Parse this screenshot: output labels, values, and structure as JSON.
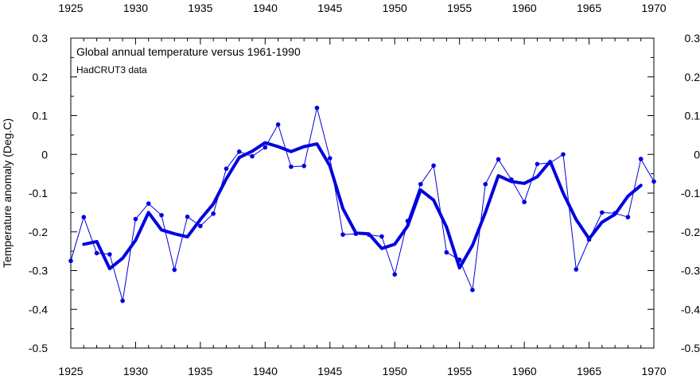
{
  "chart_data": {
    "type": "line",
    "title": "Global annual temperature versus 1961-1990",
    "subtitle": "HadCRUT3 data",
    "xlabel": "",
    "ylabel": "Temperature anomaly (Deg.C)",
    "xlim": [
      1925,
      1970
    ],
    "ylim": [
      -0.5,
      0.3
    ],
    "xticks": [
      1925,
      1930,
      1935,
      1940,
      1945,
      1950,
      1955,
      1960,
      1965,
      1970
    ],
    "yticks": [
      0.3,
      0.2,
      0.1,
      0,
      -0.1,
      -0.2,
      -0.3,
      -0.4,
      -0.5
    ],
    "ytick_labels": [
      "0.3",
      "0.2",
      "0.1",
      "0",
      "-0.1",
      "-0.2",
      "-0.3",
      "-0.4",
      "-0.5"
    ],
    "grid": false,
    "series": [
      {
        "style": "thin line with markers",
        "color": "#0000e0",
        "x": [
          1925,
          1926,
          1927,
          1928,
          1929,
          1930,
          1931,
          1932,
          1933,
          1934,
          1935,
          1936,
          1937,
          1938,
          1939,
          1940,
          1941,
          1942,
          1943,
          1944,
          1945,
          1946,
          1947,
          1948,
          1949,
          1950,
          1951,
          1952,
          1953,
          1954,
          1955,
          1956,
          1957,
          1958,
          1959,
          1960,
          1961,
          1962,
          1963,
          1964,
          1965,
          1966,
          1967,
          1968,
          1969,
          1970
        ],
        "y": [
          -0.275,
          -0.162,
          -0.255,
          -0.258,
          -0.378,
          -0.167,
          -0.127,
          -0.157,
          -0.298,
          -0.161,
          -0.185,
          -0.153,
          -0.037,
          0.007,
          -0.005,
          0.018,
          0.077,
          -0.032,
          -0.03,
          0.12,
          -0.01,
          -0.207,
          -0.205,
          -0.207,
          -0.212,
          -0.31,
          -0.172,
          -0.077,
          -0.029,
          -0.253,
          -0.272,
          -0.35,
          -0.077,
          -0.013,
          -0.065,
          -0.123,
          -0.025,
          -0.022,
          0.0,
          -0.297,
          -0.22,
          -0.15,
          -0.152,
          -0.162,
          -0.012,
          -0.07
        ]
      },
      {
        "style": "thick smoothed line",
        "color": "#0000e0",
        "x": [
          1926,
          1927,
          1928,
          1929,
          1930,
          1931,
          1932,
          1933,
          1934,
          1935,
          1936,
          1937,
          1938,
          1939,
          1940,
          1941,
          1942,
          1943,
          1944,
          1945,
          1946,
          1947,
          1948,
          1949,
          1950,
          1951,
          1952,
          1953,
          1954,
          1955,
          1956,
          1957,
          1958,
          1959,
          1960,
          1961,
          1962,
          1963,
          1964,
          1965,
          1966,
          1967,
          1968,
          1969
        ],
        "y": [
          -0.232,
          -0.225,
          -0.295,
          -0.268,
          -0.222,
          -0.15,
          -0.195,
          -0.205,
          -0.213,
          -0.168,
          -0.128,
          -0.063,
          -0.008,
          0.008,
          0.03,
          0.02,
          0.007,
          0.02,
          0.027,
          -0.03,
          -0.14,
          -0.203,
          -0.205,
          -0.243,
          -0.232,
          -0.185,
          -0.092,
          -0.118,
          -0.188,
          -0.293,
          -0.235,
          -0.15,
          -0.055,
          -0.07,
          -0.075,
          -0.058,
          -0.018,
          -0.1,
          -0.168,
          -0.218,
          -0.175,
          -0.155,
          -0.108,
          -0.08
        ]
      }
    ]
  }
}
